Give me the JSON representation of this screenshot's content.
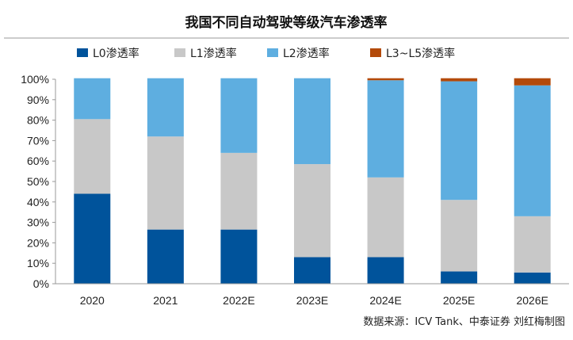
{
  "chart_data": {
    "type": "bar",
    "stacked": true,
    "title": "我国不同自动驾驶等级汽车渗透率",
    "categories": [
      "2020",
      "2021",
      "2022E",
      "2023E",
      "2024E",
      "2025E",
      "2026E"
    ],
    "series": [
      {
        "name": "L0渗透率",
        "color": "#00539b",
        "values": [
          44,
          26.5,
          26.5,
          13,
          13,
          6,
          5.5
        ]
      },
      {
        "name": "L1渗透率",
        "color": "#c8c8c8",
        "values": [
          36.5,
          45.5,
          37.5,
          45.5,
          39,
          35,
          27.5
        ]
      },
      {
        "name": "L2渗透率",
        "color": "#5eaee0",
        "values": [
          20,
          28.5,
          36.5,
          42,
          47.5,
          58,
          64
        ]
      },
      {
        "name": "L3~L5渗透率",
        "color": "#b34a0a",
        "values": [
          0,
          0,
          0,
          0,
          1,
          1.5,
          3.5
        ]
      }
    ],
    "ylim": [
      0,
      100
    ],
    "yticks": [
      "0%",
      "10%",
      "20%",
      "30%",
      "40%",
      "50%",
      "60%",
      "70%",
      "80%",
      "90%",
      "100%"
    ],
    "grid": false,
    "legend_position": "top"
  },
  "source_note": "数据来源：ICV Tank、中泰证券  刘红梅制图"
}
